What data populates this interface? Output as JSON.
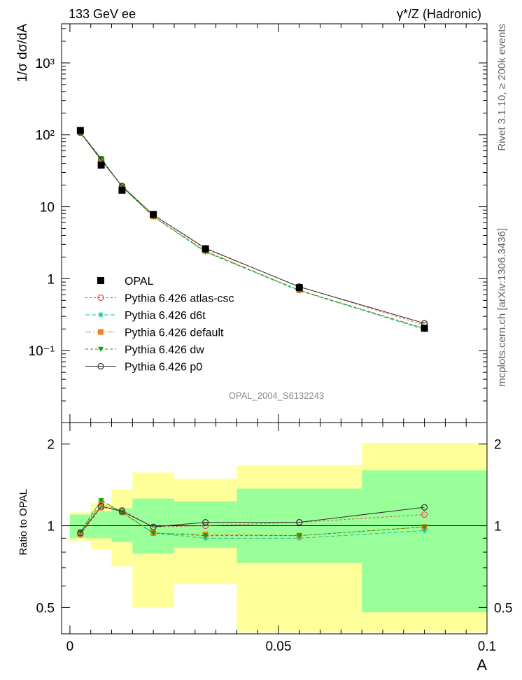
{
  "header": {
    "left": "133 GeV ee",
    "right": "γ*/Z (Hadronic)"
  },
  "side_text": {
    "rivet": "Rivet 3.1.10, ≥ 200k events",
    "mcplots": "mcplots.cern.ch [arXiv:1306.3436]"
  },
  "watermark": "OPAL_2004_S6132243",
  "colors": {
    "data": "#000000",
    "atlas_csc": "#e05050",
    "d6t": "#20c0a0",
    "default": "#f08020",
    "dw": "#10a010",
    "p0": "#303030",
    "band_outer": "#ffff99",
    "band_inner": "#99ff99"
  },
  "chart_data": [
    {
      "type": "line",
      "ylabel": "1/σ dσ/dA",
      "xlabel": "",
      "yscale": "log",
      "ylim": [
        0.01,
        3500
      ],
      "xlim": [
        -0.002,
        0.1
      ],
      "y_tick_labels": [
        "10⁻¹",
        "1",
        "10",
        "10²",
        "10³"
      ],
      "legend": {
        "position": "lower-left",
        "entries": [
          "OPAL",
          "Pythia 6.426 atlas-csc",
          "Pythia 6.426 d6t",
          "Pythia 6.426 default",
          "Pythia 6.426 dw",
          "Pythia 6.426 p0"
        ]
      },
      "data_bins": [
        {
          "x": 0.0025,
          "xlo": 0.0,
          "xhi": 0.005,
          "y": 115,
          "r_inner": [
            0.9,
            1.1
          ],
          "r_outer": [
            0.88,
            1.12
          ]
        },
        {
          "x": 0.0075,
          "xlo": 0.005,
          "xhi": 0.01,
          "y": 38,
          "r_inner": [
            0.9,
            1.13
          ],
          "r_outer": [
            0.82,
            1.21
          ]
        },
        {
          "x": 0.0125,
          "xlo": 0.01,
          "xhi": 0.015,
          "y": 17,
          "r_inner": [
            0.87,
            1.16
          ],
          "r_outer": [
            0.71,
            1.36
          ]
        },
        {
          "x": 0.02,
          "xlo": 0.015,
          "xhi": 0.025,
          "y": 7.8,
          "r_inner": [
            0.79,
            1.26
          ],
          "r_outer": [
            0.5,
            1.57
          ]
        },
        {
          "x": 0.0325,
          "xlo": 0.025,
          "xhi": 0.04,
          "y": 2.6,
          "r_inner": [
            0.83,
            1.23
          ],
          "r_outer": [
            0.61,
            1.49
          ]
        },
        {
          "x": 0.055,
          "xlo": 0.04,
          "xhi": 0.07,
          "y": 0.75,
          "r_inner": [
            0.73,
            1.37
          ],
          "r_outer": [
            0.35,
            1.67
          ]
        },
        {
          "x": 0.085,
          "xlo": 0.07,
          "xhi": 0.1,
          "y": 0.205,
          "r_inner": [
            0.48,
            1.6
          ],
          "r_outer": [
            0.35,
            2.02
          ]
        }
      ],
      "series": [
        {
          "name": "Pythia 6.426 atlas-csc",
          "key": "atlas_csc",
          "marker": "circle-open",
          "dash": "3,3",
          "x": [
            0.0025,
            0.0075,
            0.0125,
            0.02,
            0.0325,
            0.055,
            0.085
          ],
          "y": [
            107,
            44,
            19.5,
            7.7,
            2.6,
            0.78,
            0.227
          ]
        },
        {
          "name": "Pythia 6.426 d6t",
          "key": "d6t",
          "marker": "star",
          "dash": "6,3",
          "x": [
            0.0025,
            0.0075,
            0.0125,
            0.02,
            0.0325,
            0.055,
            0.085
          ],
          "y": [
            109,
            47,
            19.0,
            7.3,
            2.35,
            0.68,
            0.197
          ]
        },
        {
          "name": "Pythia 6.426 default",
          "key": "default",
          "marker": "square",
          "dash": "8,3,2,3",
          "x": [
            0.0025,
            0.0075,
            0.0125,
            0.02,
            0.0325,
            0.055,
            0.085
          ],
          "y": [
            108,
            46,
            19.0,
            7.3,
            2.43,
            0.69,
            0.203
          ]
        },
        {
          "name": "Pythia 6.426 dw",
          "key": "dw",
          "marker": "triangle-down",
          "dash": "4,3",
          "x": [
            0.0025,
            0.0075,
            0.0125,
            0.02,
            0.0325,
            0.055,
            0.085
          ],
          "y": [
            109,
            47,
            19.0,
            7.3,
            2.38,
            0.69,
            0.203
          ]
        },
        {
          "name": "Pythia 6.426 p0",
          "key": "p0",
          "marker": "circle-open",
          "dash": "",
          "x": [
            0.0025,
            0.0075,
            0.0125,
            0.02,
            0.0325,
            0.055,
            0.085
          ],
          "y": [
            108,
            45,
            19.3,
            7.7,
            2.65,
            0.77,
            0.24
          ]
        }
      ]
    },
    {
      "type": "line",
      "ylabel": "Ratio to OPAL",
      "xlabel": "A",
      "yscale": "log",
      "ylim": [
        0.4,
        2.4
      ],
      "xlim": [
        -0.002,
        0.1
      ],
      "y_tick_labels": [
        "0.5",
        "1",
        "2"
      ],
      "x_tick_labels": [
        "0",
        "0.05",
        "0.1"
      ],
      "series": [
        {
          "name": "Pythia 6.426 atlas-csc",
          "key": "atlas_csc",
          "x": [
            0.0025,
            0.0075,
            0.0125,
            0.02,
            0.0325,
            0.055,
            0.085
          ],
          "y": [
            0.93,
            1.17,
            1.14,
            0.99,
            1.0,
            1.03,
            1.1
          ]
        },
        {
          "name": "Pythia 6.426 d6t",
          "key": "d6t",
          "x": [
            0.0025,
            0.0075,
            0.0125,
            0.02,
            0.0325,
            0.055,
            0.085
          ],
          "y": [
            0.95,
            1.24,
            1.12,
            0.94,
            0.9,
            0.9,
            0.96
          ]
        },
        {
          "name": "Pythia 6.426 default",
          "key": "default",
          "x": [
            0.0025,
            0.0075,
            0.0125,
            0.02,
            0.0325,
            0.055,
            0.085
          ],
          "y": [
            0.94,
            1.21,
            1.12,
            0.94,
            0.93,
            0.92,
            0.99
          ]
        },
        {
          "name": "Pythia 6.426 dw",
          "key": "dw",
          "x": [
            0.0025,
            0.0075,
            0.0125,
            0.02,
            0.0325,
            0.055,
            0.085
          ],
          "y": [
            0.95,
            1.24,
            1.12,
            0.94,
            0.92,
            0.92,
            0.99
          ]
        },
        {
          "name": "Pythia 6.426 p0",
          "key": "p0",
          "x": [
            0.0025,
            0.0075,
            0.0125,
            0.02,
            0.0325,
            0.055,
            0.085
          ],
          "y": [
            0.94,
            1.18,
            1.13,
            0.99,
            1.03,
            1.03,
            1.17
          ]
        }
      ]
    }
  ]
}
